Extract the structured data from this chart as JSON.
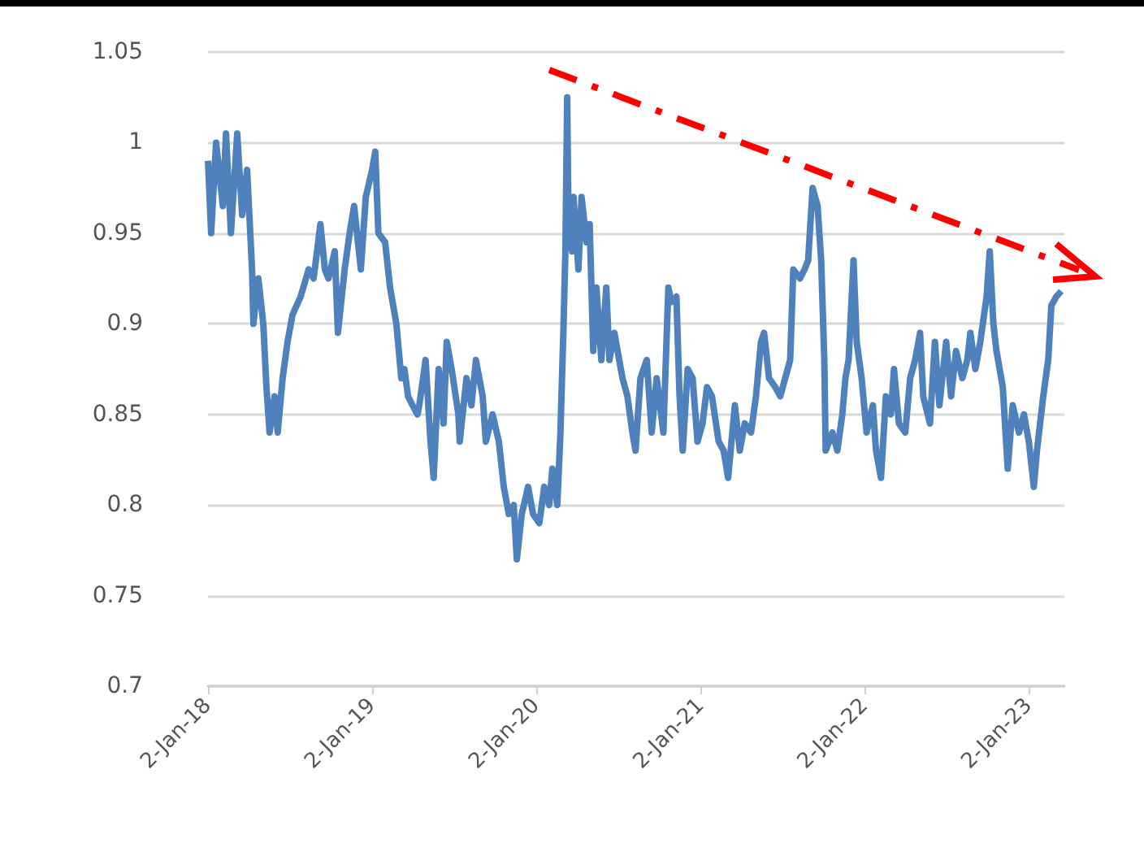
{
  "chart_data": {
    "type": "line",
    "xlim": [
      "2018-01-02",
      "2023-03-22"
    ],
    "xticks": [
      {
        "value": "2018-01-02",
        "label": "2-Jan-18"
      },
      {
        "value": "2019-01-02",
        "label": "2-Jan-19"
      },
      {
        "value": "2020-01-02",
        "label": "2-Jan-20"
      },
      {
        "value": "2021-01-02",
        "label": "2-Jan-21"
      },
      {
        "value": "2022-01-02",
        "label": "2-Jan-22"
      },
      {
        "value": "2023-01-02",
        "label": "2-Jan-23"
      }
    ],
    "ylim": [
      0.7,
      1.05
    ],
    "yticks": [
      0.7,
      0.75,
      0.8,
      0.85,
      0.9,
      0.95,
      1,
      1.05
    ],
    "grid": "y",
    "marker": "none",
    "series": [
      {
        "color": "#4f81bd",
        "x": [
          "2018-01-02",
          "2018-01-09",
          "2018-01-20",
          "2018-02-04",
          "2018-02-11",
          "2018-02-22",
          "2018-03-08",
          "2018-03-19",
          "2018-03-30",
          "2018-04-10",
          "2018-04-13",
          "2018-04-24",
          "2018-05-05",
          "2018-05-12",
          "2018-05-19",
          "2018-05-30",
          "2018-06-06",
          "2018-06-17",
          "2018-06-28",
          "2018-07-09",
          "2018-07-27",
          "2018-08-14",
          "2018-08-25",
          "2018-09-09",
          "2018-09-19",
          "2018-09-27",
          "2018-10-11",
          "2018-10-18",
          "2018-11-02",
          "2018-11-13",
          "2018-11-23",
          "2018-12-08",
          "2018-12-19",
          "2019-01-02",
          "2019-01-09",
          "2019-01-16",
          "2019-01-31",
          "2019-02-11",
          "2019-02-25",
          "2019-03-08",
          "2019-03-15",
          "2019-03-23",
          "2019-04-02",
          "2019-04-13",
          "2019-04-17",
          "2019-05-01",
          "2019-05-12",
          "2019-05-19",
          "2019-05-30",
          "2019-06-10",
          "2019-06-17",
          "2019-06-28",
          "2019-07-13",
          "2019-07-16",
          "2019-07-31",
          "2019-08-11",
          "2019-08-21",
          "2019-09-05",
          "2019-09-12",
          "2019-09-27",
          "2019-10-11",
          "2019-10-22",
          "2019-11-02",
          "2019-11-13",
          "2019-11-20",
          "2019-12-01",
          "2019-12-15",
          "2019-12-26",
          "2020-01-09",
          "2020-01-20",
          "2020-01-31",
          "2020-02-07",
          "2020-02-18",
          "2020-02-25",
          "2020-03-03",
          "2020-03-07",
          "2020-03-11",
          "2020-03-14",
          "2020-03-22",
          "2020-03-25",
          "2020-04-05",
          "2020-04-12",
          "2020-04-23",
          "2020-04-30",
          "2020-05-08",
          "2020-05-15",
          "2020-05-26",
          "2020-06-06",
          "2020-06-13",
          "2020-06-24",
          "2020-07-12",
          "2020-07-23",
          "2020-08-03",
          "2020-08-10",
          "2020-08-21",
          "2020-09-04",
          "2020-09-15",
          "2020-09-26",
          "2020-10-11",
          "2020-10-22",
          "2020-10-29",
          "2020-11-09",
          "2020-11-16",
          "2020-11-23",
          "2020-12-04",
          "2020-12-15",
          "2020-12-26",
          "2021-01-06",
          "2021-01-16",
          "2021-01-27",
          "2021-02-11",
          "2021-02-22",
          "2021-03-04",
          "2021-03-19",
          "2021-03-30",
          "2021-04-10",
          "2021-04-24",
          "2021-05-05",
          "2021-05-16",
          "2021-05-23",
          "2021-06-03",
          "2021-06-17",
          "2021-06-28",
          "2021-07-09",
          "2021-07-20",
          "2021-07-27",
          "2021-08-11",
          "2021-08-21",
          "2021-08-29",
          "2021-09-08",
          "2021-09-19",
          "2021-09-27",
          "2021-10-04",
          "2021-10-07",
          "2021-10-22",
          "2021-11-02",
          "2021-11-13",
          "2021-11-20",
          "2021-11-27",
          "2021-12-08",
          "2021-12-15",
          "2021-12-26",
          "2022-01-06",
          "2022-01-20",
          "2022-01-27",
          "2022-02-07",
          "2022-02-18",
          "2022-03-01",
          "2022-03-08",
          "2022-03-19",
          "2022-04-02",
          "2022-04-13",
          "2022-04-24",
          "2022-05-05",
          "2022-05-12",
          "2022-05-27",
          "2022-06-07",
          "2022-06-17",
          "2022-07-02",
          "2022-07-13",
          "2022-07-24",
          "2022-08-07",
          "2022-08-18",
          "2022-08-25",
          "2022-09-05",
          "2022-09-16",
          "2022-09-30",
          "2022-10-07",
          "2022-10-15",
          "2022-10-22",
          "2022-11-05",
          "2022-11-16",
          "2022-11-27",
          "2022-12-11",
          "2022-12-22",
          "2023-01-02",
          "2023-01-13",
          "2023-01-20",
          "2023-02-03",
          "2023-02-14",
          "2023-02-21",
          "2023-03-04",
          "2023-03-15"
        ],
        "values": [
          0.99,
          0.95,
          1.0,
          0.965,
          1.005,
          0.95,
          1.005,
          0.96,
          0.985,
          0.93,
          0.9,
          0.925,
          0.9,
          0.865,
          0.84,
          0.86,
          0.84,
          0.87,
          0.89,
          0.905,
          0.915,
          0.93,
          0.925,
          0.955,
          0.93,
          0.925,
          0.94,
          0.895,
          0.93,
          0.95,
          0.965,
          0.93,
          0.97,
          0.985,
          0.995,
          0.95,
          0.945,
          0.92,
          0.9,
          0.87,
          0.875,
          0.86,
          0.855,
          0.85,
          0.855,
          0.88,
          0.835,
          0.815,
          0.875,
          0.845,
          0.89,
          0.875,
          0.85,
          0.835,
          0.87,
          0.855,
          0.88,
          0.86,
          0.835,
          0.85,
          0.835,
          0.81,
          0.795,
          0.8,
          0.77,
          0.795,
          0.81,
          0.795,
          0.79,
          0.81,
          0.8,
          0.82,
          0.8,
          0.84,
          0.9,
          0.94,
          1.025,
          0.955,
          0.94,
          0.97,
          0.93,
          0.97,
          0.945,
          0.955,
          0.885,
          0.92,
          0.88,
          0.92,
          0.88,
          0.895,
          0.87,
          0.86,
          0.84,
          0.83,
          0.87,
          0.88,
          0.84,
          0.87,
          0.84,
          0.92,
          0.912,
          0.915,
          0.86,
          0.83,
          0.875,
          0.87,
          0.835,
          0.845,
          0.865,
          0.86,
          0.835,
          0.83,
          0.815,
          0.855,
          0.83,
          0.845,
          0.84,
          0.86,
          0.89,
          0.895,
          0.87,
          0.865,
          0.86,
          0.87,
          0.88,
          0.93,
          0.925,
          0.93,
          0.935,
          0.975,
          0.965,
          0.935,
          0.88,
          0.83,
          0.84,
          0.83,
          0.85,
          0.87,
          0.88,
          0.935,
          0.89,
          0.87,
          0.84,
          0.855,
          0.83,
          0.815,
          0.86,
          0.85,
          0.875,
          0.845,
          0.84,
          0.87,
          0.88,
          0.895,
          0.86,
          0.845,
          0.89,
          0.855,
          0.89,
          0.86,
          0.885,
          0.87,
          0.88,
          0.895,
          0.875,
          0.89,
          0.915,
          0.94,
          0.9,
          0.885,
          0.865,
          0.82,
          0.855,
          0.84,
          0.85,
          0.835,
          0.81,
          0.83,
          0.86,
          0.88,
          0.91,
          0.915,
          0.918
        ]
      }
    ]
  }
}
